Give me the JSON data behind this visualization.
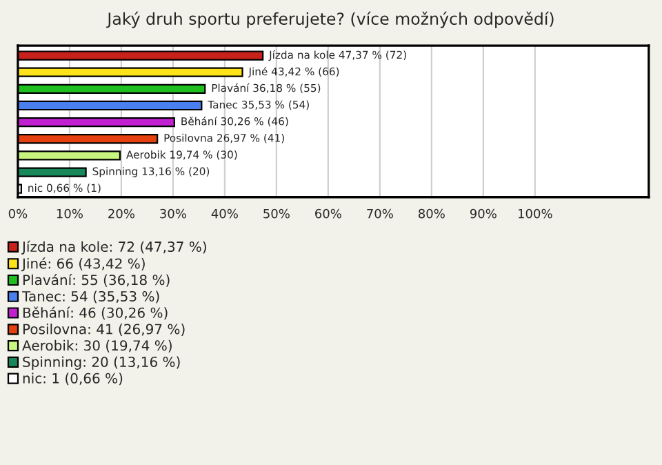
{
  "chart_data": {
    "type": "bar",
    "title": "Jaký druh sportu preferujete? (více možných odpovědí)",
    "orientation": "horizontal",
    "categories": [
      null,
      null,
      null,
      null,
      null,
      null,
      null,
      null,
      null
    ],
    "series": [
      {
        "name": "Jízda na kole: 72 (47,37 %)",
        "color": "#c8201a",
        "values": [
          47.37,
          null,
          null,
          null,
          null,
          null,
          null,
          null,
          null
        ],
        "value_labels": [
          "Jízda na kole 47,37 % (72)",
          null,
          null,
          null,
          null,
          null,
          null,
          null,
          null
        ]
      },
      {
        "name": "Jiné: 66 (43,42 %)",
        "color": "#ffe31a",
        "values": [
          null,
          43.42,
          null,
          null,
          null,
          null,
          null,
          null,
          null
        ],
        "value_labels": [
          null,
          "Jiné 43,42 % (66)",
          null,
          null,
          null,
          null,
          null,
          null,
          null
        ]
      },
      {
        "name": "Plavání: 55 (36,18 %)",
        "color": "#1fbf1f",
        "values": [
          null,
          null,
          36.18,
          null,
          null,
          null,
          null,
          null,
          null
        ],
        "value_labels": [
          null,
          null,
          "Plavání 36,18 % (55)",
          null,
          null,
          null,
          null,
          null,
          null
        ]
      },
      {
        "name": "Tanec: 54 (35,53 %)",
        "color": "#4a7ff0",
        "values": [
          null,
          null,
          null,
          35.53,
          null,
          null,
          null,
          null,
          null
        ],
        "value_labels": [
          null,
          null,
          null,
          "Tanec 35,53 % (54)",
          null,
          null,
          null,
          null,
          null
        ]
      },
      {
        "name": "Běhání: 46 (30,26 %)",
        "color": "#c020d0",
        "values": [
          null,
          null,
          null,
          null,
          30.26,
          null,
          null,
          null,
          null
        ],
        "value_labels": [
          null,
          null,
          null,
          null,
          "Běhání 30,26 % (46)",
          null,
          null,
          null,
          null
        ]
      },
      {
        "name": "Posilovna: 41 (26,97 %)",
        "color": "#e5400f",
        "values": [
          null,
          null,
          null,
          null,
          null,
          26.97,
          null,
          null,
          null
        ],
        "value_labels": [
          null,
          null,
          null,
          null,
          null,
          "Posilovna 26,97 % (41)",
          null,
          null,
          null
        ]
      },
      {
        "name": "Aerobik: 30 (19,74 %)",
        "color": "#c8f580",
        "values": [
          null,
          null,
          null,
          null,
          null,
          null,
          19.74,
          null,
          null
        ],
        "value_labels": [
          null,
          null,
          null,
          null,
          null,
          null,
          "Aerobik 19,74 % (30)",
          null,
          null
        ]
      },
      {
        "name": "Spinning: 20 (13,16 %)",
        "color": "#18885a",
        "values": [
          null,
          null,
          null,
          null,
          null,
          null,
          null,
          13.16,
          null
        ],
        "value_labels": [
          null,
          null,
          null,
          null,
          null,
          null,
          null,
          "Spinning 13,16 % (20)",
          null
        ]
      },
      {
        "name": "nic: 1 (0,66 %)",
        "color": "#ffffff",
        "values": [
          null,
          null,
          null,
          null,
          null,
          null,
          null,
          null,
          0.66
        ],
        "value_labels": [
          null,
          null,
          null,
          null,
          null,
          null,
          null,
          null,
          "nic 0,66 % (1)"
        ]
      }
    ],
    "xlim": [
      0,
      122
    ],
    "xticks": [
      {
        "value": 0,
        "label": "0%"
      },
      {
        "value": 10,
        "label": "10%"
      },
      {
        "value": 20,
        "label": "20%"
      },
      {
        "value": 30,
        "label": "30%"
      },
      {
        "value": 40,
        "label": "40%"
      },
      {
        "value": 50,
        "label": "50%"
      },
      {
        "value": 60,
        "label": "60%"
      },
      {
        "value": 70,
        "label": "70%"
      },
      {
        "value": 80,
        "label": "80%"
      },
      {
        "value": 90,
        "label": "90%"
      },
      {
        "value": 100,
        "label": "100%"
      }
    ],
    "grid": "x",
    "legend": "bottom"
  }
}
